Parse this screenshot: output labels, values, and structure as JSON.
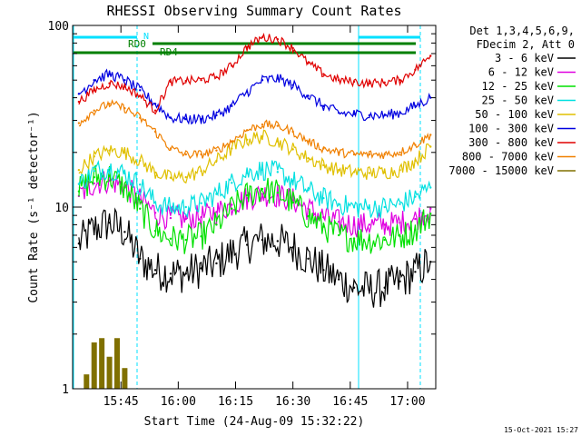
{
  "chart_data": {
    "type": "line",
    "title": "RHESSI Observing Summary Count Rates",
    "xlabel": "Start Time (24-Aug-09 15:32:22)",
    "ylabel": "Count Rate (s⁻¹ detector⁻¹)",
    "y_scale": "log",
    "ylim": [
      1,
      100
    ],
    "xlim_minutes_after_15_32_22": [
      0,
      95
    ],
    "x_ticks": [
      "15:45",
      "16:00",
      "16:15",
      "16:30",
      "16:45",
      "17:00"
    ],
    "y_ticks": [
      "1",
      "10",
      "100"
    ],
    "timestamp": "15-Oct-2021 15:27",
    "legend": {
      "header": [
        "Det 1,3,4,5,6,9,",
        "FDecim 2, Att 0"
      ],
      "placement": "right"
    },
    "markers": [
      {
        "label": "N",
        "color": "#00e0ff"
      },
      {
        "label": "RD0",
        "color": "#008000"
      },
      {
        "label": "RD4",
        "color": "#008000"
      }
    ],
    "series": [
      {
        "name": "3 - 6 keV",
        "color": "#000000",
        "x": [
          "15:34",
          "15:38",
          "15:42",
          "15:46",
          "15:50",
          "15:54",
          "15:58",
          "16:02",
          "16:06",
          "16:10",
          "16:14",
          "16:18",
          "16:22",
          "16:26",
          "16:30",
          "16:34",
          "16:38",
          "16:42",
          "16:46",
          "16:50",
          "16:54",
          "16:58",
          "17:02",
          "17:06"
        ],
        "values": [
          6.3,
          7.6,
          8.2,
          7.3,
          5.2,
          4.5,
          4.3,
          4.3,
          4.6,
          4.9,
          5.6,
          6.2,
          6.6,
          6.5,
          6.0,
          5.2,
          4.5,
          4.0,
          3.6,
          3.5,
          3.6,
          3.9,
          4.4,
          5.0
        ]
      },
      {
        "name": "6 - 12 keV",
        "color": "#e000e0",
        "x": [
          "15:34",
          "15:38",
          "15:42",
          "15:46",
          "15:50",
          "15:54",
          "15:58",
          "16:02",
          "16:06",
          "16:10",
          "16:14",
          "16:18",
          "16:22",
          "16:26",
          "16:30",
          "16:34",
          "16:38",
          "16:42",
          "16:46",
          "16:50",
          "16:54",
          "16:58",
          "17:02",
          "17:06"
        ],
        "values": [
          11.5,
          13.5,
          14.0,
          13.0,
          11.0,
          9.3,
          8.7,
          8.6,
          8.8,
          9.4,
          10.3,
          11.2,
          11.8,
          11.6,
          10.9,
          9.8,
          8.8,
          8.3,
          8.0,
          8.0,
          8.0,
          8.2,
          8.6,
          9.8
        ]
      },
      {
        "name": "12 - 25 keV",
        "color": "#00e000",
        "x": [
          "15:34",
          "15:38",
          "15:42",
          "15:46",
          "15:50",
          "15:54",
          "15:58",
          "16:02",
          "16:06",
          "16:10",
          "16:14",
          "16:18",
          "16:22",
          "16:26",
          "16:30",
          "16:34",
          "16:38",
          "16:42",
          "16:46",
          "16:50",
          "16:54",
          "16:58",
          "17:02",
          "17:06"
        ],
        "values": [
          12.2,
          14.6,
          14.8,
          12.8,
          9.8,
          7.4,
          6.7,
          6.6,
          6.9,
          8.0,
          9.8,
          11.6,
          12.6,
          12.0,
          10.6,
          8.9,
          7.8,
          7.0,
          6.7,
          6.6,
          6.6,
          6.9,
          7.5,
          9.2
        ]
      },
      {
        "name": "25 - 50 keV",
        "color": "#00e0e0",
        "x": [
          "15:34",
          "15:38",
          "15:42",
          "15:46",
          "15:50",
          "15:54",
          "15:58",
          "16:02",
          "16:06",
          "16:10",
          "16:14",
          "16:18",
          "16:22",
          "16:26",
          "16:30",
          "16:34",
          "16:38",
          "16:42",
          "16:46",
          "16:50",
          "16:54",
          "16:58",
          "17:02",
          "17:06"
        ],
        "values": [
          13.4,
          15.8,
          16.4,
          15.3,
          13.3,
          10.6,
          9.9,
          10.0,
          10.5,
          11.8,
          13.6,
          15.4,
          16.1,
          15.6,
          14.0,
          12.4,
          11.2,
          10.4,
          10.0,
          9.9,
          10.0,
          10.4,
          11.4,
          12.8
        ]
      },
      {
        "name": "50 - 100 keV",
        "color": "#e0c000",
        "x": [
          "15:34",
          "15:38",
          "15:42",
          "15:46",
          "15:50",
          "15:54",
          "15:58",
          "16:02",
          "16:06",
          "16:10",
          "16:14",
          "16:18",
          "16:22",
          "16:26",
          "16:30",
          "16:34",
          "16:38",
          "16:42",
          "16:46",
          "16:50",
          "16:54",
          "16:58",
          "17:02",
          "17:06"
        ],
        "values": [
          16.0,
          19.0,
          20.5,
          20.0,
          18.0,
          15.5,
          14.5,
          14.6,
          15.8,
          18.0,
          21.0,
          23.5,
          24.5,
          23.0,
          20.8,
          18.6,
          17.0,
          16.0,
          15.6,
          15.4,
          15.5,
          16.0,
          18.0,
          21.5
        ]
      },
      {
        "name": "100 - 300 keV",
        "color": "#0000e0",
        "x": [
          "15:34",
          "15:38",
          "15:42",
          "15:46",
          "15:50",
          "15:54",
          "15:58",
          "16:02",
          "16:06",
          "16:10",
          "16:14",
          "16:18",
          "16:22",
          "16:26",
          "16:30",
          "16:34",
          "16:38",
          "16:42",
          "16:46",
          "16:50",
          "16:54",
          "16:58",
          "17:02",
          "17:06"
        ],
        "values": [
          42,
          50,
          54,
          50,
          44,
          37,
          31,
          30.5,
          30.5,
          32,
          36,
          43,
          50,
          51,
          47,
          41,
          36,
          33,
          32.5,
          32,
          32,
          33,
          36,
          40
        ]
      },
      {
        "name": "300 - 800 keV",
        "color": "#e00000",
        "x": [
          "15:34",
          "15:38",
          "15:42",
          "15:46",
          "15:50",
          "15:54",
          "15:58",
          "16:02",
          "16:06",
          "16:10",
          "16:14",
          "16:18",
          "16:22",
          "16:26",
          "16:30",
          "16:34",
          "16:38",
          "16:42",
          "16:46",
          "16:50",
          "16:54",
          "16:58",
          "17:02",
          "17:06"
        ],
        "values": [
          38,
          44,
          48,
          46,
          41,
          34,
          49,
          49.5,
          50,
          52,
          60,
          76,
          86,
          84,
          75,
          62,
          54,
          50,
          49,
          48,
          48.5,
          50,
          57,
          68
        ]
      },
      {
        "name": "800 - 7000 keV",
        "color": "#f08000",
        "x": [
          "15:34",
          "15:38",
          "15:42",
          "15:46",
          "15:50",
          "15:54",
          "15:58",
          "16:02",
          "16:06",
          "16:10",
          "16:14",
          "16:18",
          "16:22",
          "16:26",
          "16:30",
          "16:34",
          "16:38",
          "16:42",
          "16:46",
          "16:50",
          "16:54",
          "16:58",
          "17:02",
          "17:06"
        ],
        "values": [
          29,
          34,
          37,
          35,
          31,
          26,
          21,
          19.5,
          19.5,
          20.5,
          23,
          26.5,
          28.5,
          28,
          26,
          23,
          21,
          20,
          19.5,
          19.5,
          19.5,
          20,
          22,
          25
        ]
      },
      {
        "name": "7000 - 15000 keV",
        "color": "#807000",
        "x": [
          "15:36",
          "15:38",
          "15:40",
          "15:42",
          "15:44",
          "15:46"
        ],
        "values": [
          1.2,
          1.8,
          1.9,
          1.5,
          1.9,
          1.3
        ]
      }
    ]
  }
}
